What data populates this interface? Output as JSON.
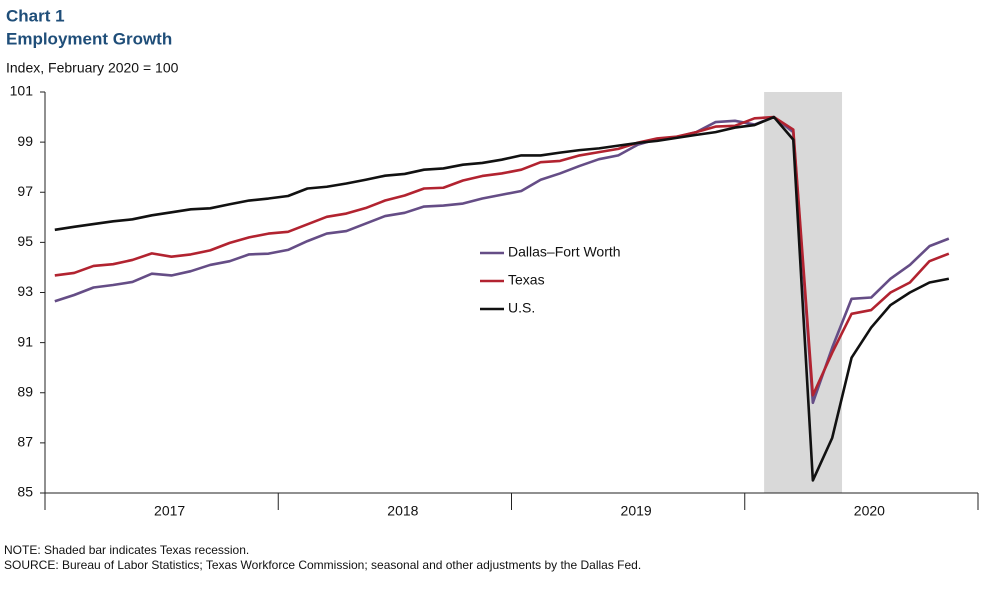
{
  "chart_data": {
    "type": "line",
    "title": "Chart 1",
    "subtitle": "Employment Growth",
    "y_label": "Index, February 2020 = 100",
    "note": "NOTE: Shaded bar indicates Texas recession.",
    "source": "SOURCE: Bureau of Labor Statistics; Texas Workforce Commission; seasonal and other adjustments by the Dallas Fed.",
    "x": [
      2017.042,
      2017.125,
      2017.208,
      2017.292,
      2017.375,
      2017.458,
      2017.542,
      2017.625,
      2017.708,
      2017.792,
      2017.875,
      2017.958,
      2018.042,
      2018.125,
      2018.208,
      2018.292,
      2018.375,
      2018.458,
      2018.542,
      2018.625,
      2018.708,
      2018.792,
      2018.875,
      2018.958,
      2019.042,
      2019.125,
      2019.208,
      2019.292,
      2019.375,
      2019.458,
      2019.542,
      2019.625,
      2019.708,
      2019.792,
      2019.875,
      2019.958,
      2020.042,
      2020.125,
      2020.208,
      2020.292,
      2020.375,
      2020.458,
      2020.542,
      2020.625,
      2020.708,
      2020.792,
      2020.875
    ],
    "series": [
      {
        "name": "Dallas–Fort Worth",
        "color": "#654d86",
        "values": [
          92.65,
          92.9,
          93.2,
          93.3,
          93.42,
          93.75,
          93.68,
          93.85,
          94.1,
          94.25,
          94.52,
          94.55,
          94.7,
          95.05,
          95.35,
          95.45,
          95.75,
          96.05,
          96.18,
          96.43,
          96.47,
          96.55,
          96.75,
          96.9,
          97.05,
          97.5,
          97.75,
          98.05,
          98.32,
          98.47,
          98.9,
          99.12,
          99.2,
          99.4,
          99.8,
          99.85,
          99.7,
          100,
          99.4,
          88.6,
          90.8,
          92.75,
          92.8,
          93.55,
          94.1,
          94.85,
          95.15
        ]
      },
      {
        "name": "Texas",
        "color": "#b22330",
        "values": [
          93.68,
          93.78,
          94.06,
          94.13,
          94.3,
          94.56,
          94.43,
          94.52,
          94.68,
          94.98,
          95.2,
          95.35,
          95.42,
          95.72,
          96.02,
          96.15,
          96.37,
          96.67,
          96.87,
          97.15,
          97.18,
          97.47,
          97.65,
          97.75,
          97.9,
          98.2,
          98.25,
          98.47,
          98.6,
          98.73,
          98.98,
          99.15,
          99.22,
          99.4,
          99.62,
          99.65,
          99.95,
          100,
          99.5,
          88.9,
          90.6,
          92.15,
          92.3,
          93.0,
          93.4,
          94.25,
          94.55
        ]
      },
      {
        "name": "U.S.",
        "color": "#111111",
        "values": [
          95.5,
          95.62,
          95.73,
          95.84,
          95.92,
          96.08,
          96.2,
          96.32,
          96.36,
          96.52,
          96.67,
          96.75,
          96.85,
          97.15,
          97.22,
          97.35,
          97.5,
          97.66,
          97.73,
          97.9,
          97.95,
          98.1,
          98.17,
          98.3,
          98.47,
          98.47,
          98.58,
          98.68,
          98.75,
          98.86,
          98.97,
          99.05,
          99.17,
          99.29,
          99.4,
          99.58,
          99.68,
          100,
          99.1,
          85.5,
          87.2,
          90.4,
          91.6,
          92.5,
          93.0,
          93.4,
          93.55
        ]
      }
    ],
    "shade": [
      2020.083,
      2020.417
    ],
    "shade_color": "#d9d9d9",
    "xlim": [
      2017,
      2021
    ],
    "xticks": [
      {
        "value": 2017.5,
        "label": "2017"
      },
      {
        "value": 2018.5,
        "label": "2018"
      },
      {
        "value": 2019.5,
        "label": "2019"
      },
      {
        "value": 2020.5,
        "label": "2020"
      }
    ],
    "xtick_marks": [
      2017,
      2018,
      2019,
      2020,
      2021
    ],
    "ylim": [
      85,
      101
    ],
    "yticks": [
      85,
      87,
      89,
      91,
      93,
      95,
      97,
      99,
      101
    ],
    "grid": false,
    "legend": "center"
  }
}
